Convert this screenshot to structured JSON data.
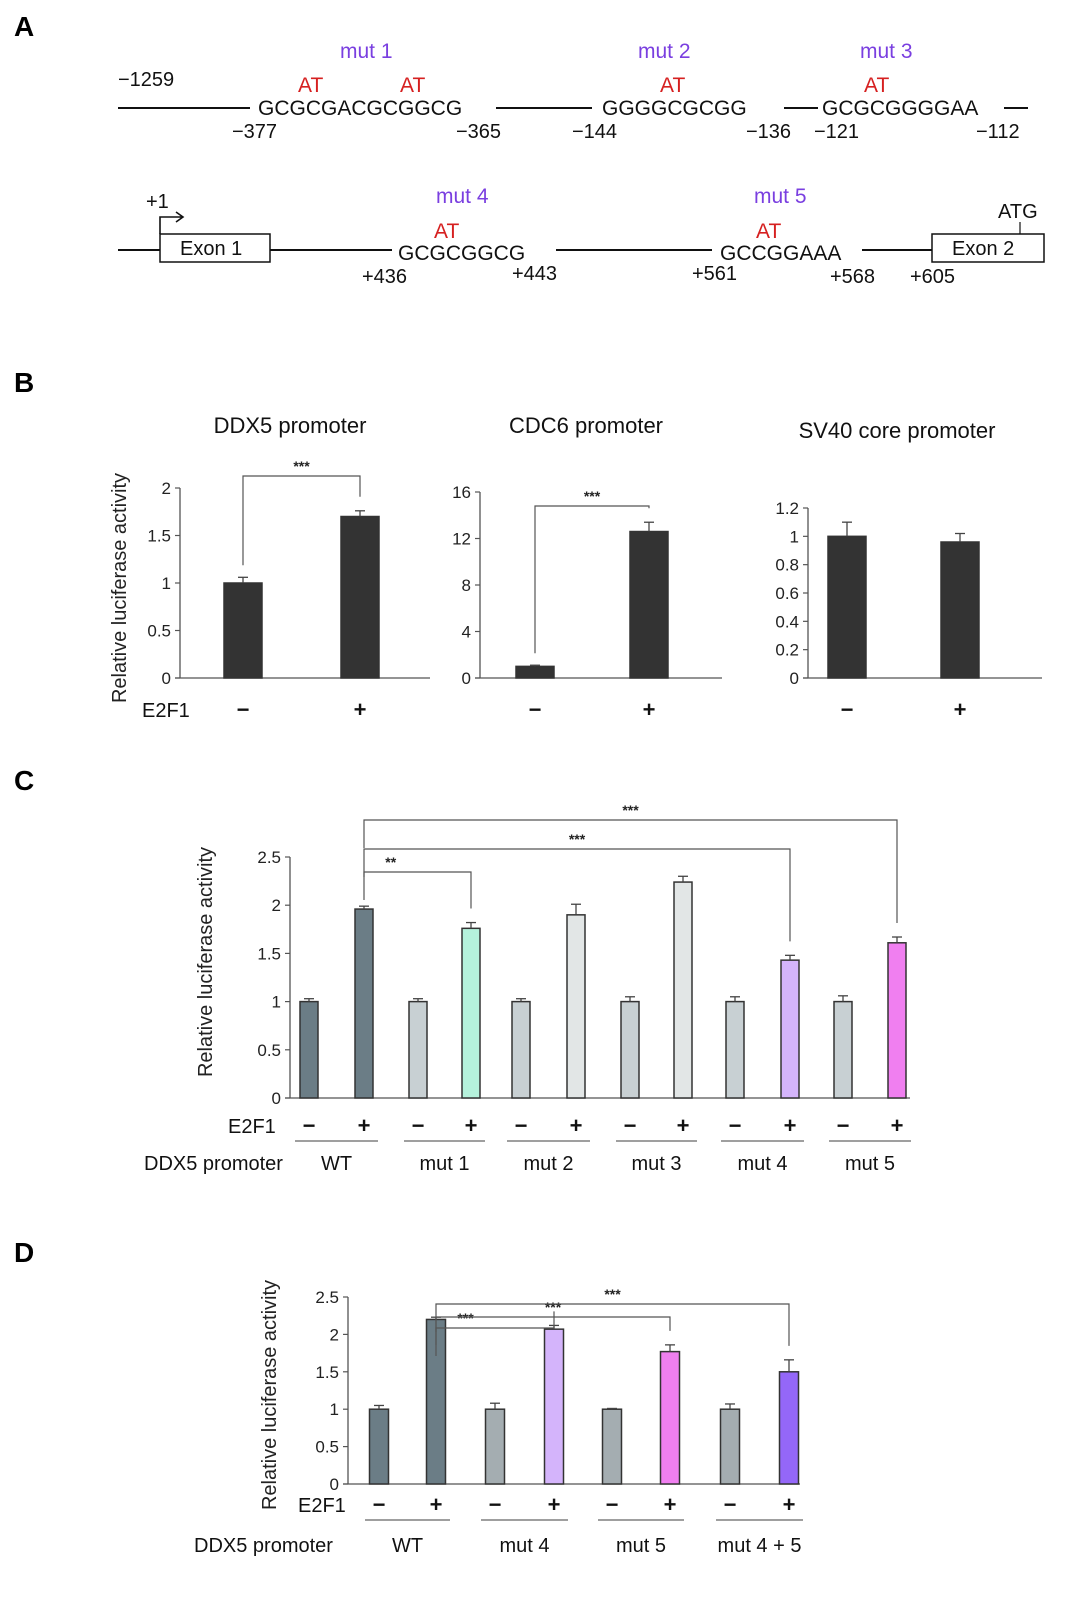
{
  "panels": {
    "A": "A",
    "B": "B",
    "C": "C",
    "D": "D"
  },
  "diagram": {
    "row1": {
      "start": "−1259",
      "sites": [
        {
          "mut": "mut 1",
          "seq": "GCGCGACGCGGCG",
          "at": [
            "AT",
            "AT"
          ],
          "start": "−377",
          "end": "−365"
        },
        {
          "mut": "mut 2",
          "seq": "GGGGCGCGG",
          "at": [
            "AT"
          ],
          "start": "−144",
          "end": "−136"
        },
        {
          "mut": "mut 3",
          "seq": "GCGCGGGGAA",
          "at": [
            "AT"
          ],
          "start": "−121",
          "end": "−112"
        }
      ]
    },
    "row2": {
      "tss": "+1",
      "exon1": "Exon 1",
      "exon2": "Exon 2",
      "atg": "ATG",
      "exon2_pos": "+605",
      "sites": [
        {
          "mut": "mut 4",
          "seq": "GCGCGGCG",
          "at": [
            "AT"
          ],
          "start": "+436",
          "end": "+443"
        },
        {
          "mut": "mut 5",
          "seq": "GCCGGAAA",
          "at": [
            "AT"
          ],
          "start": "+561",
          "end": "+568"
        }
      ]
    }
  },
  "labels": {
    "ylabel": "Relative luciferase activity",
    "e2f1": "E2F1",
    "ddx5_promoter": "DDX5 promoter",
    "minus": "−",
    "plus": "+"
  },
  "chart_data": [
    {
      "id": "B1",
      "type": "bar",
      "title": "DDX5 promoter",
      "ylabel": "Relative luciferase activity",
      "xlabel": "E2F1",
      "categories": [
        "−",
        "+"
      ],
      "values": [
        1.0,
        1.7
      ],
      "errors": [
        0.06,
        0.06
      ],
      "ylim": [
        0,
        2
      ],
      "yticks": [
        "0",
        "0.5",
        "1",
        "1.5",
        "2"
      ],
      "ytick_values": [
        0,
        0.5,
        1,
        1.5,
        2
      ],
      "colors": [
        "#333333",
        "#333333"
      ],
      "significance": [
        {
          "from": 0,
          "to": 1,
          "label": "***"
        }
      ]
    },
    {
      "id": "B2",
      "type": "bar",
      "title": "CDC6 promoter",
      "ylabel": "",
      "xlabel": "",
      "categories": [
        "−",
        "+"
      ],
      "values": [
        1.0,
        12.6
      ],
      "errors": [
        0.1,
        0.8
      ],
      "ylim": [
        0,
        16
      ],
      "yticks": [
        "0",
        "4",
        "8",
        "12",
        "16"
      ],
      "ytick_values": [
        0,
        4,
        8,
        12,
        16
      ],
      "colors": [
        "#333333",
        "#333333"
      ],
      "significance": [
        {
          "from": 0,
          "to": 1,
          "label": "***"
        }
      ]
    },
    {
      "id": "B3",
      "type": "bar",
      "title": "SV40 core promoter",
      "ylabel": "",
      "xlabel": "",
      "categories": [
        "−",
        "+"
      ],
      "values": [
        1.0,
        0.96
      ],
      "errors": [
        0.1,
        0.06
      ],
      "ylim": [
        0,
        1.2
      ],
      "yticks": [
        "0",
        "0.2",
        "0.4",
        "0.6",
        "0.8",
        "1",
        "1.2"
      ],
      "ytick_values": [
        0,
        0.2,
        0.4,
        0.6,
        0.8,
        1.0,
        1.2
      ],
      "colors": [
        "#333333",
        "#333333"
      ],
      "significance": []
    },
    {
      "id": "C",
      "type": "bar",
      "title": "",
      "ylabel": "Relative luciferase activity",
      "groups": [
        "WT",
        "mut 1",
        "mut 2",
        "mut 3",
        "mut 4",
        "mut 5"
      ],
      "categories": [
        "−",
        "+",
        "−",
        "+",
        "−",
        "+",
        "−",
        "+",
        "−",
        "+",
        "−",
        "+"
      ],
      "values": [
        1.0,
        1.96,
        1.0,
        1.76,
        1.0,
        1.9,
        1.0,
        2.24,
        1.0,
        1.43,
        1.0,
        1.61
      ],
      "errors": [
        0.03,
        0.03,
        0.03,
        0.06,
        0.03,
        0.11,
        0.05,
        0.06,
        0.05,
        0.05,
        0.06,
        0.06
      ],
      "ylim": [
        0,
        2.5
      ],
      "yticks": [
        "0",
        "0.5",
        "1",
        "1.5",
        "2",
        "2.5"
      ],
      "ytick_values": [
        0,
        0.5,
        1,
        1.5,
        2,
        2.5
      ],
      "colors": [
        "#6b7d86",
        "#6b7d86",
        "#c8d0d3",
        "#b5f2dc",
        "#c8d0d3",
        "#e2e6e6",
        "#c8d0d3",
        "#e2e6e6",
        "#c8d0d3",
        "#d4b4fb",
        "#c8d0d3",
        "#f07ff0"
      ],
      "significance": [
        {
          "from": 1,
          "to": 3,
          "label": "**"
        },
        {
          "from": 1,
          "to": 9,
          "label": "***"
        },
        {
          "from": 1,
          "to": 11,
          "label": "***"
        }
      ]
    },
    {
      "id": "D",
      "type": "bar",
      "title": "",
      "ylabel": "Relative luciferase activity",
      "groups": [
        "WT",
        "mut 4",
        "mut 5",
        "mut 4 + 5"
      ],
      "categories": [
        "−",
        "+",
        "−",
        "+",
        "−",
        "+",
        "−",
        "+"
      ],
      "values": [
        1.0,
        2.2,
        1.0,
        2.07,
        1.0,
        1.77,
        1.0,
        1.5
      ],
      "errors": [
        0.05,
        0.03,
        0.08,
        0.05,
        0.01,
        0.09,
        0.07,
        0.16
      ],
      "ylim": [
        0,
        2.5
      ],
      "yticks": [
        "0",
        "0.5",
        "1",
        "1.5",
        "2",
        "2.5"
      ],
      "ytick_values": [
        0,
        0.5,
        1,
        1.5,
        2,
        2.5
      ],
      "colors": [
        "#6b7d86",
        "#6b7d86",
        "#a4adb1",
        "#d4b4fb",
        "#a4adb1",
        "#f07ff0",
        "#a4adb1",
        "#9467f8"
      ],
      "significance": [
        {
          "from": 1,
          "to": 3,
          "label": "***"
        },
        {
          "from": 1,
          "to": 5,
          "label": "***"
        },
        {
          "from": 1,
          "to": 7,
          "label": "***"
        }
      ]
    }
  ]
}
